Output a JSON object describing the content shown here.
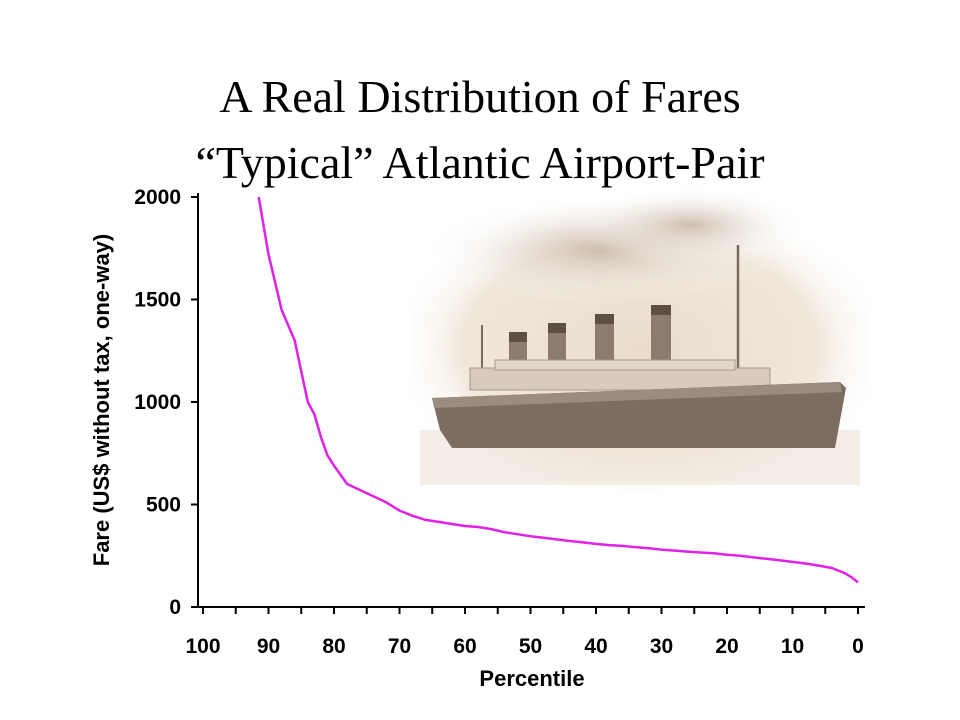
{
  "title": {
    "line1": "A Real Distribution of Fares",
    "line2": "“Typical” Atlantic Airport-Pair"
  },
  "chart_data": {
    "type": "line",
    "xlabel": "Percentile",
    "ylabel": "Fare (US$ without tax, one-way)",
    "xlim": [
      100,
      0
    ],
    "ylim": [
      0,
      2000
    ],
    "x_ticks": [
      100,
      90,
      80,
      70,
      60,
      50,
      40,
      30,
      20,
      10,
      0
    ],
    "y_ticks": [
      0,
      500,
      1000,
      1500,
      2000
    ],
    "grid": false,
    "legend": "none",
    "series": [
      {
        "color": "#e021e8",
        "x": [
          91.5,
          90,
          88,
          86,
          84,
          83,
          82,
          81,
          80,
          78,
          76,
          74,
          72,
          70,
          68,
          66,
          64,
          62,
          60,
          58,
          56,
          54,
          52,
          50,
          48,
          46,
          44,
          42,
          40,
          38,
          36,
          34,
          32,
          30,
          28,
          26,
          24,
          22,
          20,
          18,
          16,
          14,
          12,
          10,
          8,
          6,
          4,
          2,
          1,
          0
        ],
        "y": [
          2000,
          1720,
          1450,
          1300,
          1000,
          940,
          830,
          740,
          690,
          600,
          570,
          540,
          510,
          470,
          445,
          425,
          415,
          405,
          395,
          390,
          380,
          365,
          355,
          345,
          338,
          330,
          322,
          315,
          308,
          302,
          298,
          292,
          287,
          280,
          275,
          270,
          266,
          262,
          255,
          250,
          242,
          235,
          228,
          220,
          212,
          202,
          190,
          165,
          145,
          120
        ]
      }
    ]
  }
}
